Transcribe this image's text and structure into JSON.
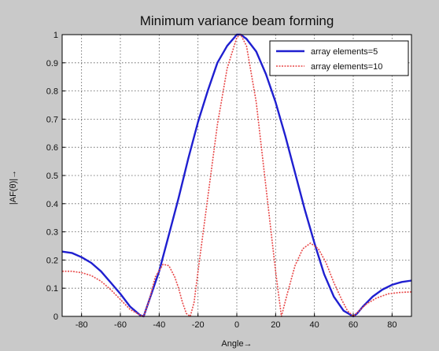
{
  "chart_data": {
    "type": "line",
    "title": "Minimum variance beam forming",
    "xlabel": "Angle→",
    "ylabel": "|AF(θ)|→",
    "xlim": [
      -90,
      90
    ],
    "ylim": [
      0,
      1
    ],
    "grid": true,
    "legend_position": "top-right",
    "x_ticks": [
      -80,
      -60,
      -40,
      -20,
      0,
      20,
      40,
      60,
      80
    ],
    "y_ticks": [
      0,
      0.1,
      0.2,
      0.3,
      0.4,
      0.5,
      0.6,
      0.7,
      0.8,
      0.9,
      1
    ],
    "y_tick_labels": [
      "0",
      "0.1",
      "0.2",
      "0.3",
      "0.4",
      "0.5",
      "0.6",
      "0.7",
      "0.8",
      "0.9",
      "1"
    ],
    "series": [
      {
        "name": "array elements=5",
        "color": "#1f1fd0",
        "style": "solid",
        "x": [
          -90,
          -85,
          -80,
          -75,
          -70,
          -65,
          -60,
          -55,
          -50,
          -48,
          -45,
          -40,
          -35,
          -30,
          -25,
          -20,
          -15,
          -10,
          -5,
          0,
          2,
          5,
          10,
          15,
          20,
          25,
          30,
          35,
          40,
          45,
          50,
          55,
          60,
          62,
          65,
          70,
          75,
          80,
          85,
          90
        ],
        "y": [
          0.23,
          0.225,
          0.21,
          0.19,
          0.16,
          0.12,
          0.08,
          0.035,
          0.005,
          0.0,
          0.06,
          0.16,
          0.29,
          0.42,
          0.56,
          0.69,
          0.8,
          0.9,
          0.96,
          1.0,
          1.0,
          0.985,
          0.94,
          0.86,
          0.76,
          0.64,
          0.51,
          0.38,
          0.26,
          0.15,
          0.07,
          0.02,
          0.0,
          0.01,
          0.035,
          0.07,
          0.095,
          0.112,
          0.122,
          0.127
        ]
      },
      {
        "name": "array elements=10",
        "color": "#e84848",
        "style": "dotted",
        "x": [
          -90,
          -85,
          -80,
          -75,
          -70,
          -65,
          -60,
          -55,
          -50,
          -48,
          -45,
          -42,
          -38,
          -35,
          -32,
          -30,
          -28,
          -26,
          -24,
          -22,
          -20,
          -15,
          -10,
          -5,
          0,
          2,
          5,
          10,
          15,
          20,
          23,
          26,
          30,
          34,
          38,
          42,
          46,
          50,
          54,
          57,
          60,
          63,
          67,
          72,
          78,
          84,
          90
        ],
        "y": [
          0.16,
          0.16,
          0.155,
          0.145,
          0.125,
          0.095,
          0.06,
          0.025,
          0.005,
          0.0,
          0.06,
          0.14,
          0.185,
          0.18,
          0.14,
          0.1,
          0.05,
          0.01,
          0.0,
          0.05,
          0.16,
          0.42,
          0.68,
          0.88,
          0.99,
          1.0,
          0.96,
          0.76,
          0.46,
          0.16,
          0.0,
          0.08,
          0.18,
          0.24,
          0.26,
          0.24,
          0.19,
          0.12,
          0.06,
          0.02,
          0.0,
          0.02,
          0.045,
          0.065,
          0.08,
          0.085,
          0.087
        ]
      }
    ]
  }
}
